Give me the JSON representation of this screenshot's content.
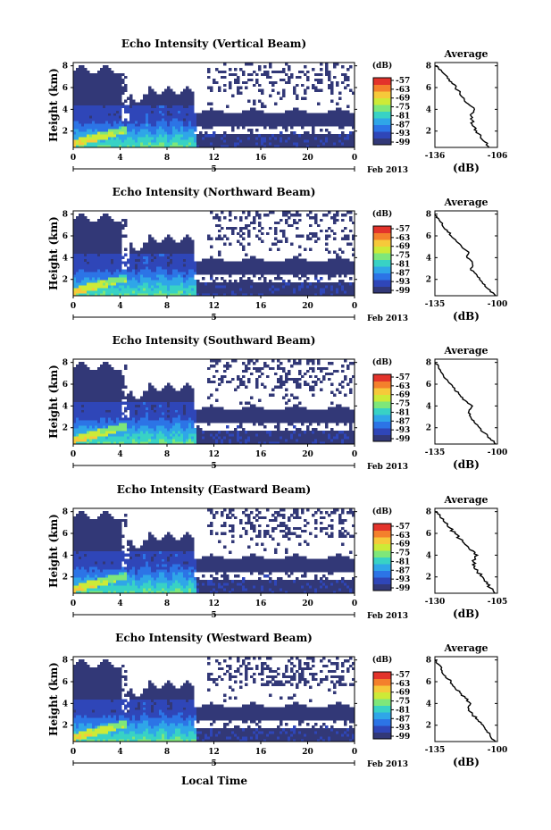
{
  "figure": {
    "xaxis_title": "Local Time",
    "date_label": "Feb 2013",
    "day_label": "5",
    "colorbar_unit": "(dB)",
    "colorbar_ticks": [
      "-57",
      "-63",
      "-69",
      "-75",
      "-81",
      "-87",
      "-93",
      "-99"
    ],
    "colors": [
      "#323877",
      "#2f46b8",
      "#2c74e6",
      "#2fa6e8",
      "#38d2c5",
      "#7ee77a",
      "#cdea37",
      "#f6c93a",
      "#f4802c",
      "#e3332b"
    ]
  },
  "chart_data": [
    {
      "type": "heatmap",
      "title": "Echo Intensity (Vertical Beam)",
      "ylabel": "Height (km)",
      "xlabel": "Local Time",
      "x_ticks": [
        "0",
        "4",
        "8",
        "12",
        "16",
        "20",
        "0"
      ],
      "y_ticks": [
        "2",
        "4",
        "6",
        "8"
      ],
      "xlim": [
        0,
        24
      ],
      "ylim": [
        0.5,
        8.3
      ],
      "colorbar": {
        "label": "(dB)",
        "ticks": [
          -57,
          -63,
          -69,
          -75,
          -81,
          -87,
          -93,
          -99
        ]
      },
      "average_profile": {
        "title": "Average",
        "xlabel": "(dB)",
        "x_ticks": [
          "-136",
          "-106"
        ],
        "y_ticks": [
          "2",
          "4",
          "6",
          "8"
        ],
        "xlim": [
          -136,
          -106
        ],
        "points": [
          [
            -110,
            0.5
          ],
          [
            -112,
            1.0
          ],
          [
            -114,
            1.5
          ],
          [
            -116,
            2.0
          ],
          [
            -118,
            2.5
          ],
          [
            -118,
            3.0
          ],
          [
            -119,
            3.5
          ],
          [
            -117,
            4.0
          ],
          [
            -120,
            4.5
          ],
          [
            -122,
            5.0
          ],
          [
            -124,
            5.5
          ],
          [
            -126,
            6.0
          ],
          [
            -128,
            6.5
          ],
          [
            -130,
            7.0
          ],
          [
            -133,
            7.6
          ],
          [
            -136,
            8.0
          ]
        ]
      }
    },
    {
      "type": "heatmap",
      "title": "Echo Intensity (Northward Beam)",
      "ylabel": "Height (km)",
      "xlabel": "Local Time",
      "x_ticks": [
        "0",
        "4",
        "8",
        "12",
        "16",
        "20",
        "0"
      ],
      "y_ticks": [
        "2",
        "4",
        "6",
        "8"
      ],
      "xlim": [
        0,
        24
      ],
      "ylim": [
        0.5,
        8.3
      ],
      "colorbar": {
        "label": "(dB)",
        "ticks": [
          -57,
          -63,
          -69,
          -75,
          -81,
          -87,
          -93,
          -99
        ]
      },
      "average_profile": {
        "title": "Average",
        "xlabel": "(dB)",
        "x_ticks": [
          "-135",
          "-100"
        ],
        "y_ticks": [
          "2",
          "4",
          "6",
          "8"
        ],
        "xlim": [
          -135,
          -100
        ],
        "points": [
          [
            -101,
            0.5
          ],
          [
            -104,
            1.0
          ],
          [
            -107,
            1.5
          ],
          [
            -110,
            2.0
          ],
          [
            -112,
            2.5
          ],
          [
            -115,
            3.0
          ],
          [
            -114,
            3.5
          ],
          [
            -117,
            4.0
          ],
          [
            -116,
            4.5
          ],
          [
            -120,
            5.0
          ],
          [
            -123,
            5.5
          ],
          [
            -126,
            6.0
          ],
          [
            -128,
            6.5
          ],
          [
            -131,
            7.0
          ],
          [
            -133,
            7.6
          ],
          [
            -135,
            8.0
          ]
        ]
      }
    },
    {
      "type": "heatmap",
      "title": "Echo Intensity (Southward Beam)",
      "ylabel": "Height (km)",
      "xlabel": "Local Time",
      "x_ticks": [
        "0",
        "4",
        "8",
        "12",
        "16",
        "20",
        "0"
      ],
      "y_ticks": [
        "2",
        "4",
        "6",
        "8"
      ],
      "xlim": [
        0,
        24
      ],
      "ylim": [
        0.5,
        8.3
      ],
      "colorbar": {
        "label": "(dB)",
        "ticks": [
          -57,
          -63,
          -69,
          -75,
          -81,
          -87,
          -93,
          -99
        ]
      },
      "average_profile": {
        "title": "Average",
        "xlabel": "(dB)",
        "x_ticks": [
          "-135",
          "-100"
        ],
        "y_ticks": [
          "2",
          "4",
          "6",
          "8"
        ],
        "xlim": [
          -135,
          -100
        ],
        "points": [
          [
            -101,
            0.5
          ],
          [
            -104,
            1.0
          ],
          [
            -107,
            1.5
          ],
          [
            -110,
            2.0
          ],
          [
            -113,
            2.5
          ],
          [
            -115,
            3.0
          ],
          [
            -116,
            3.5
          ],
          [
            -114,
            4.0
          ],
          [
            -118,
            4.5
          ],
          [
            -121,
            5.0
          ],
          [
            -124,
            5.5
          ],
          [
            -126,
            6.0
          ],
          [
            -129,
            6.5
          ],
          [
            -131,
            7.0
          ],
          [
            -133,
            7.6
          ],
          [
            -135,
            8.0
          ]
        ]
      }
    },
    {
      "type": "heatmap",
      "title": "Echo Intensity (Eastward Beam)",
      "ylabel": "Height (km)",
      "xlabel": "Local Time",
      "x_ticks": [
        "0",
        "4",
        "8",
        "12",
        "16",
        "20",
        "0"
      ],
      "y_ticks": [
        "2",
        "4",
        "6",
        "8"
      ],
      "xlim": [
        0,
        24
      ],
      "ylim": [
        0.5,
        8.3
      ],
      "colorbar": {
        "label": "(dB)",
        "ticks": [
          -57,
          -63,
          -69,
          -75,
          -81,
          -87,
          -93,
          -99
        ]
      },
      "average_profile": {
        "title": "Average",
        "xlabel": "(dB)",
        "x_ticks": [
          "-130",
          "-105"
        ],
        "y_ticks": [
          "2",
          "4",
          "6",
          "8"
        ],
        "xlim": [
          -130,
          -105
        ],
        "points": [
          [
            -106,
            0.5
          ],
          [
            -108,
            1.0
          ],
          [
            -109,
            1.5
          ],
          [
            -111,
            2.0
          ],
          [
            -113,
            2.5
          ],
          [
            -114,
            3.0
          ],
          [
            -115,
            3.5
          ],
          [
            -113,
            4.0
          ],
          [
            -116,
            4.5
          ],
          [
            -118,
            5.0
          ],
          [
            -120,
            5.5
          ],
          [
            -122,
            6.0
          ],
          [
            -124,
            6.5
          ],
          [
            -126,
            7.0
          ],
          [
            -128,
            7.6
          ],
          [
            -130,
            8.0
          ]
        ]
      }
    },
    {
      "type": "heatmap",
      "title": "Echo Intensity (Westward Beam)",
      "ylabel": "Height (km)",
      "xlabel": "Local Time",
      "x_ticks": [
        "0",
        "4",
        "8",
        "12",
        "16",
        "20",
        "0"
      ],
      "y_ticks": [
        "2",
        "4",
        "6",
        "8"
      ],
      "xlim": [
        0,
        24
      ],
      "ylim": [
        0.5,
        8.3
      ],
      "colorbar": {
        "label": "(dB)",
        "ticks": [
          -57,
          -63,
          -69,
          -75,
          -81,
          -87,
          -93,
          -99
        ]
      },
      "average_profile": {
        "title": "Average",
        "xlabel": "(dB)",
        "x_ticks": [
          "-135",
          "-100"
        ],
        "y_ticks": [
          "2",
          "4",
          "6",
          "8"
        ],
        "xlim": [
          -135,
          -100
        ],
        "points": [
          [
            -101,
            0.5
          ],
          [
            -104,
            1.0
          ],
          [
            -106,
            1.5
          ],
          [
            -108,
            2.0
          ],
          [
            -111,
            2.5
          ],
          [
            -114,
            3.0
          ],
          [
            -116,
            3.5
          ],
          [
            -115,
            4.0
          ],
          [
            -118,
            4.5
          ],
          [
            -121,
            5.0
          ],
          [
            -124,
            5.5
          ],
          [
            -126,
            6.0
          ],
          [
            -129,
            6.5
          ],
          [
            -131,
            7.0
          ],
          [
            -133,
            7.6
          ],
          [
            -135,
            8.0
          ]
        ]
      }
    }
  ]
}
